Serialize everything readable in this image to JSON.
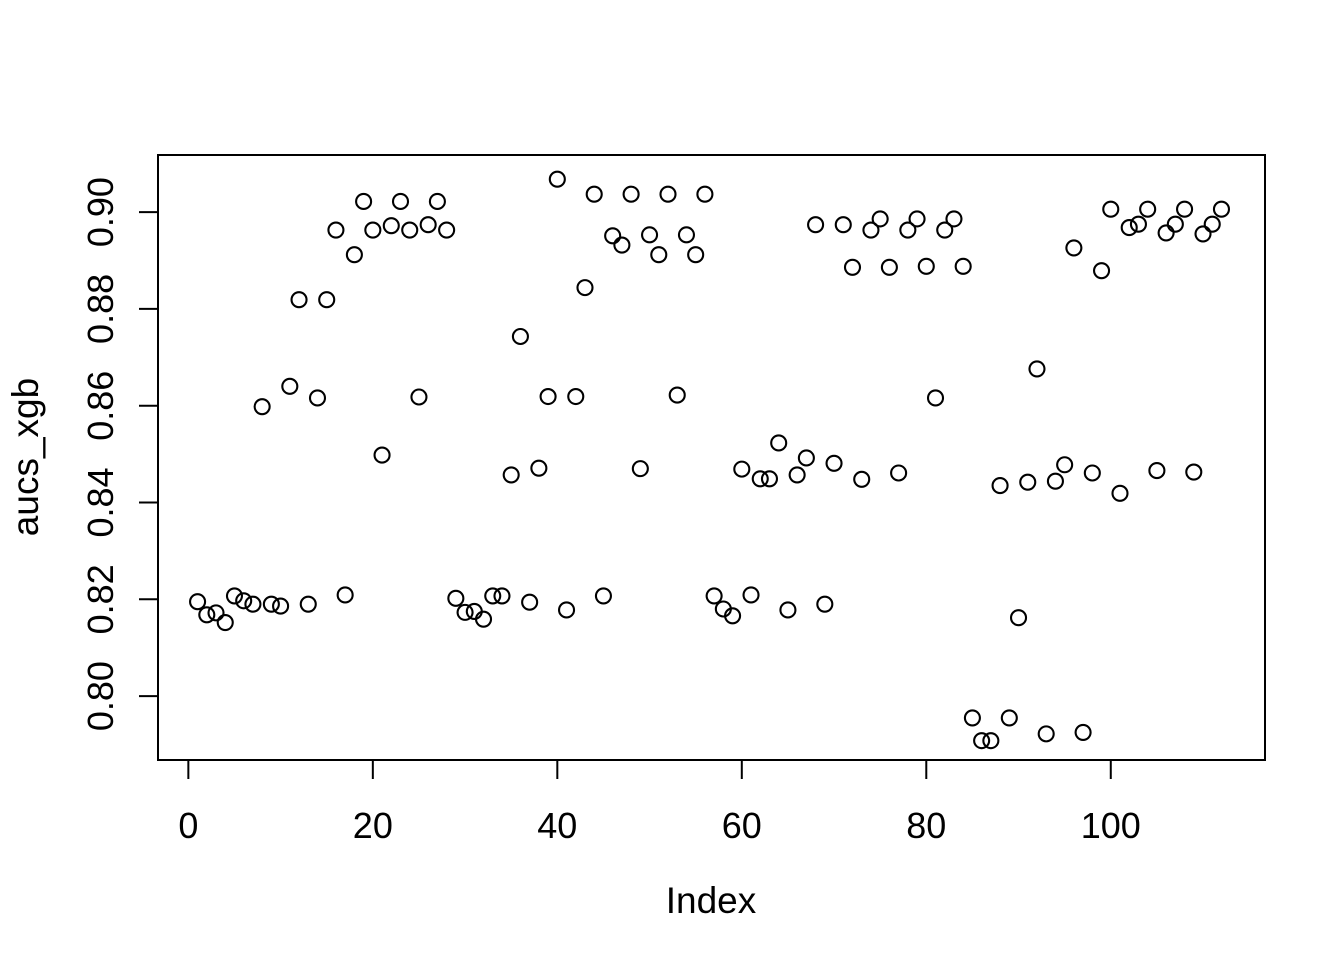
{
  "chart_data": {
    "type": "scatter",
    "title": "",
    "xlabel": "Index",
    "ylabel": "aucs_xgb",
    "marker": "open-circle",
    "grid": false,
    "legend": null,
    "xlim": [
      -3.29,
      116.72
    ],
    "ylim": [
      0.7868,
      0.9118
    ],
    "x_tick_values": [
      0,
      20,
      40,
      60,
      80,
      100
    ],
    "x_tick_labels": [
      "0",
      "20",
      "40",
      "60",
      "80",
      "100"
    ],
    "y_tick_values": [
      0.8,
      0.82,
      0.84,
      0.86,
      0.88,
      0.9
    ],
    "y_tick_labels": [
      "0.80",
      "0.82",
      "0.84",
      "0.86",
      "0.88",
      "0.90"
    ],
    "points": [
      [
        1,
        0.8195
      ],
      [
        2,
        0.8168
      ],
      [
        3,
        0.8172
      ],
      [
        4,
        0.8152
      ],
      [
        5,
        0.8207
      ],
      [
        6,
        0.8197
      ],
      [
        7,
        0.819
      ],
      [
        8,
        0.8598
      ],
      [
        9,
        0.819
      ],
      [
        10,
        0.8186
      ],
      [
        11,
        0.864
      ],
      [
        12,
        0.8819
      ],
      [
        13,
        0.819
      ],
      [
        14,
        0.8616
      ],
      [
        15,
        0.8819
      ],
      [
        16,
        0.8963
      ],
      [
        17,
        0.8209
      ],
      [
        18,
        0.8912
      ],
      [
        19,
        0.9022
      ],
      [
        20,
        0.8963
      ],
      [
        21,
        0.8498
      ],
      [
        22,
        0.8972
      ],
      [
        23,
        0.9022
      ],
      [
        24,
        0.8963
      ],
      [
        25,
        0.8618
      ],
      [
        26,
        0.8974
      ],
      [
        27,
        0.9022
      ],
      [
        28,
        0.8963
      ],
      [
        29,
        0.8202
      ],
      [
        30,
        0.8173
      ],
      [
        31,
        0.8175
      ],
      [
        32,
        0.8159
      ],
      [
        33,
        0.8207
      ],
      [
        34,
        0.8207
      ],
      [
        35,
        0.8457
      ],
      [
        36,
        0.8743
      ],
      [
        37,
        0.8194
      ],
      [
        38,
        0.8471
      ],
      [
        39,
        0.8619
      ],
      [
        40,
        0.9068
      ],
      [
        41,
        0.8178
      ],
      [
        42,
        0.8619
      ],
      [
        43,
        0.8844
      ],
      [
        44,
        0.9037
      ],
      [
        45,
        0.8207
      ],
      [
        46,
        0.8951
      ],
      [
        47,
        0.8932
      ],
      [
        48,
        0.9037
      ],
      [
        49,
        0.847
      ],
      [
        50,
        0.8953
      ],
      [
        51,
        0.8912
      ],
      [
        52,
        0.9037
      ],
      [
        53,
        0.8622
      ],
      [
        54,
        0.8953
      ],
      [
        55,
        0.8912
      ],
      [
        56,
        0.9037
      ],
      [
        57,
        0.8207
      ],
      [
        58,
        0.818
      ],
      [
        59,
        0.8166
      ],
      [
        60,
        0.8469
      ],
      [
        61,
        0.8209
      ],
      [
        62,
        0.8449
      ],
      [
        63,
        0.8449
      ],
      [
        64,
        0.8523
      ],
      [
        65,
        0.8178
      ],
      [
        66,
        0.8457
      ],
      [
        67,
        0.8492
      ],
      [
        68,
        0.8974
      ],
      [
        69,
        0.819
      ],
      [
        70,
        0.8481
      ],
      [
        71,
        0.8974
      ],
      [
        72,
        0.8886
      ],
      [
        73,
        0.8448
      ],
      [
        74,
        0.8963
      ],
      [
        75,
        0.8986
      ],
      [
        76,
        0.8886
      ],
      [
        77,
        0.8461
      ],
      [
        78,
        0.8963
      ],
      [
        79,
        0.8986
      ],
      [
        80,
        0.8888
      ],
      [
        81,
        0.8616
      ],
      [
        82,
        0.8963
      ],
      [
        83,
        0.8986
      ],
      [
        84,
        0.8888
      ],
      [
        85,
        0.7955
      ],
      [
        86,
        0.7908
      ],
      [
        87,
        0.7908
      ],
      [
        88,
        0.8435
      ],
      [
        89,
        0.7955
      ],
      [
        90,
        0.8162
      ],
      [
        91,
        0.8442
      ],
      [
        92,
        0.8676
      ],
      [
        93,
        0.7922
      ],
      [
        94,
        0.8444
      ],
      [
        95,
        0.8478
      ],
      [
        96,
        0.8926
      ],
      [
        97,
        0.7925
      ],
      [
        98,
        0.8461
      ],
      [
        99,
        0.8879
      ],
      [
        100,
        0.9006
      ],
      [
        101,
        0.8419
      ],
      [
        102,
        0.8968
      ],
      [
        103,
        0.8975
      ],
      [
        104,
        0.9006
      ],
      [
        105,
        0.8466
      ],
      [
        106,
        0.8957
      ],
      [
        107,
        0.8975
      ],
      [
        108,
        0.9006
      ],
      [
        109,
        0.8463
      ],
      [
        110,
        0.8955
      ],
      [
        111,
        0.8975
      ],
      [
        112,
        0.9006
      ]
    ]
  },
  "colors": {
    "foreground": "#000000",
    "background": "#ffffff"
  }
}
